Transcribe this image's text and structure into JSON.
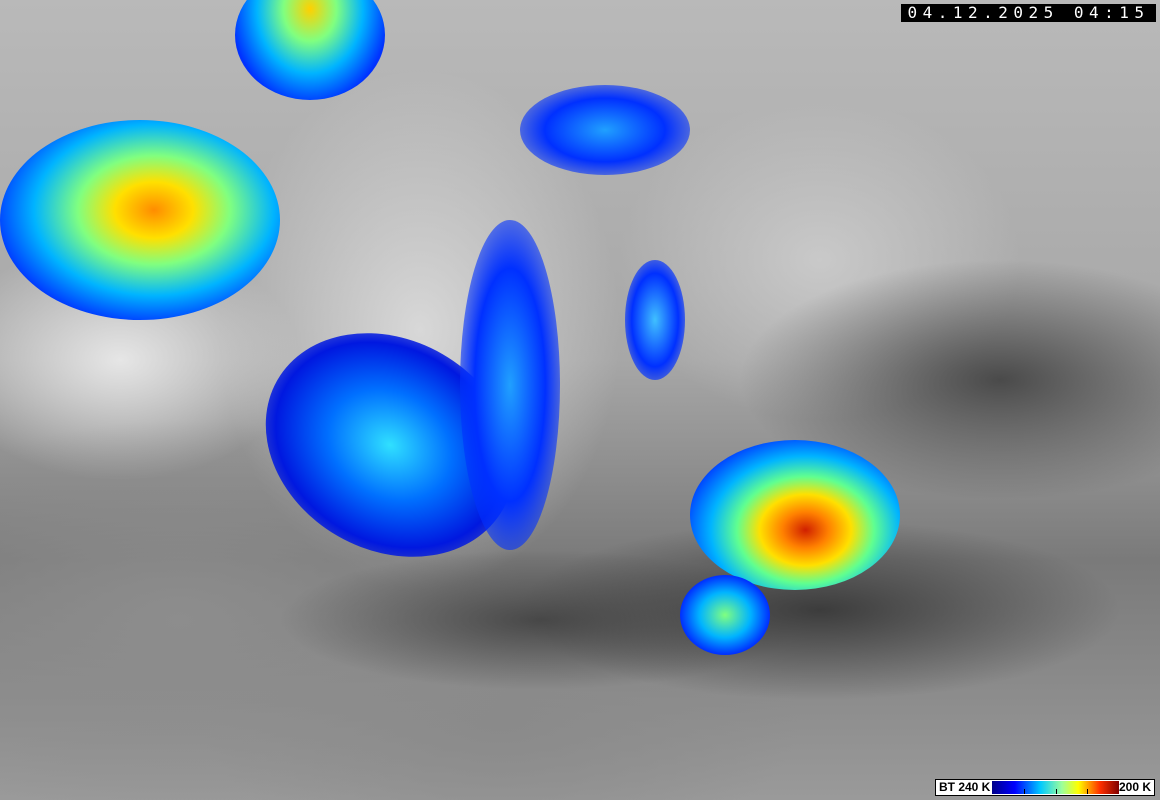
{
  "image": {
    "type": "infrared satellite brightness-temperature image"
  },
  "timestamp": "04.12.2025 04:15",
  "legend": {
    "left_label": "BT 240 K",
    "right_label": "200 K",
    "colors": [
      "#00008a",
      "#0000ff",
      "#00c8ff",
      "#9cff9c",
      "#ffff00",
      "#ff3000",
      "#800000"
    ]
  }
}
